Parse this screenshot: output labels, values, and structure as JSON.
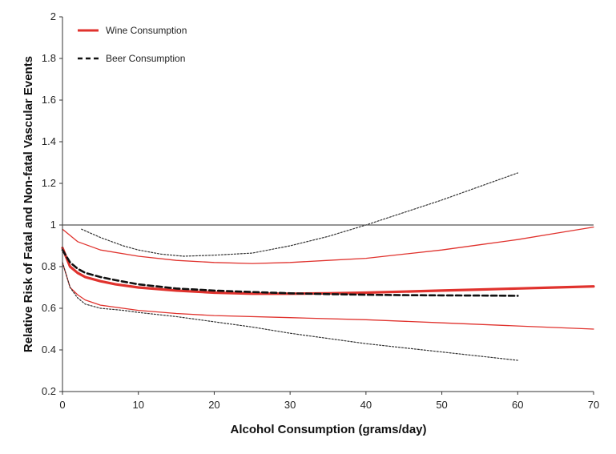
{
  "chart_data": {
    "type": "line",
    "xlabel": "Alcohol Consumption (grams/day)",
    "ylabel": "Relative Risk of Fatal and Non-fatal Vascular Events",
    "xlim": [
      0,
      70
    ],
    "ylim": [
      0.2,
      2
    ],
    "x_ticks": [
      "0",
      "10",
      "20",
      "30",
      "40",
      "50",
      "60",
      "70"
    ],
    "y_ticks": [
      "0.2",
      "0.4",
      "0.6",
      "0.8",
      "1",
      "1.2",
      "1.4",
      "1.6",
      "1.8",
      "2"
    ],
    "grid": false,
    "legend_position": "top-left",
    "reference_line": {
      "y": 1
    },
    "legend": [
      {
        "label": "Wine Consumption",
        "color": "#e0322d",
        "style": "solid"
      },
      {
        "label": "Beer Consumption",
        "color": "#111111",
        "style": "dashed"
      }
    ],
    "series": [
      {
        "name": "Wine Consumption",
        "color": "#e0322d",
        "role": "estimate",
        "x": [
          0,
          1,
          2,
          3,
          5,
          7,
          10,
          15,
          20,
          25,
          30,
          35,
          40,
          45,
          50,
          55,
          60,
          65,
          70
        ],
        "y": [
          0.89,
          0.8,
          0.77,
          0.75,
          0.73,
          0.715,
          0.7,
          0.685,
          0.675,
          0.67,
          0.67,
          0.672,
          0.675,
          0.68,
          0.685,
          0.69,
          0.695,
          0.7,
          0.705
        ]
      },
      {
        "name": "Wine Consumption",
        "color": "#e0322d",
        "role": "upper-ci",
        "x": [
          0,
          2,
          5,
          10,
          15,
          20,
          25,
          30,
          35,
          40,
          45,
          50,
          55,
          60,
          65,
          70
        ],
        "y": [
          0.98,
          0.92,
          0.88,
          0.85,
          0.83,
          0.82,
          0.815,
          0.82,
          0.83,
          0.84,
          0.86,
          0.88,
          0.905,
          0.93,
          0.96,
          0.99
        ]
      },
      {
        "name": "Wine Consumption",
        "color": "#e0322d",
        "role": "lower-ci",
        "x": [
          0,
          1,
          2,
          3,
          5,
          8,
          10,
          15,
          20,
          30,
          40,
          50,
          60,
          70
        ],
        "y": [
          0.82,
          0.7,
          0.665,
          0.64,
          0.615,
          0.6,
          0.59,
          0.575,
          0.565,
          0.555,
          0.545,
          0.53,
          0.515,
          0.5
        ]
      },
      {
        "name": "Beer Consumption",
        "color": "#111111",
        "role": "estimate",
        "x": [
          0,
          1,
          2,
          3,
          5,
          7,
          10,
          15,
          20,
          25,
          30,
          35,
          40,
          45,
          50,
          55,
          60
        ],
        "y": [
          0.88,
          0.82,
          0.79,
          0.77,
          0.75,
          0.735,
          0.715,
          0.695,
          0.685,
          0.678,
          0.672,
          0.668,
          0.665,
          0.663,
          0.662,
          0.661,
          0.66
        ]
      },
      {
        "name": "Beer Consumption",
        "color": "#333333",
        "role": "upper-ci",
        "x": [
          2.5,
          5,
          8,
          10,
          13,
          16,
          20,
          25,
          30,
          35,
          40,
          45,
          50,
          55,
          60
        ],
        "y": [
          0.98,
          0.94,
          0.9,
          0.88,
          0.86,
          0.85,
          0.855,
          0.865,
          0.9,
          0.945,
          1.0,
          1.06,
          1.12,
          1.185,
          1.25
        ]
      },
      {
        "name": "Beer Consumption",
        "color": "#333333",
        "role": "lower-ci",
        "x": [
          0,
          1,
          2,
          3,
          5,
          8,
          10,
          15,
          20,
          25,
          30,
          40,
          50,
          60
        ],
        "y": [
          0.82,
          0.7,
          0.65,
          0.62,
          0.6,
          0.59,
          0.58,
          0.56,
          0.535,
          0.51,
          0.48,
          0.43,
          0.39,
          0.35
        ]
      }
    ]
  }
}
